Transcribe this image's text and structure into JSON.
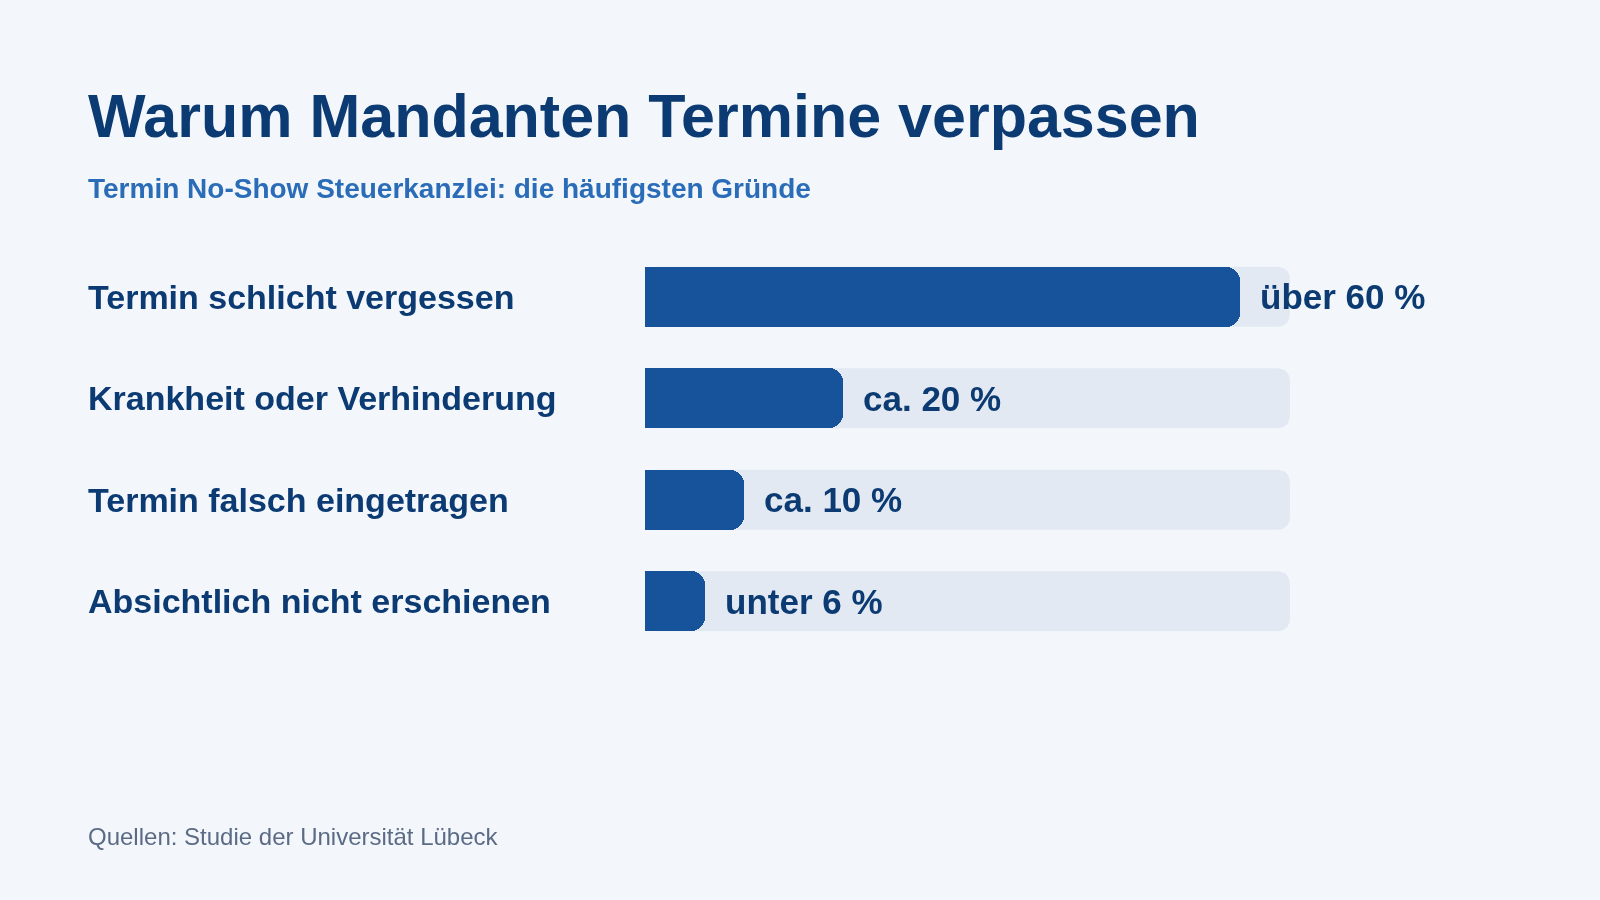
{
  "chart_data": {
    "type": "bar",
    "orientation": "horizontal",
    "title": "Warum Mandanten Termine verpassen",
    "subtitle": "Termin No-Show Steuerkanzlei: die häufigsten Gründe",
    "categories": [
      "Termin schlicht vergessen",
      "Krankheit oder Verhinderung",
      "Termin falsch eingetragen",
      "Absichtlich nicht erschienen"
    ],
    "values": [
      60,
      20,
      10,
      6
    ],
    "color": "#16539a",
    "value_labels": [
      "über 60 %",
      "ca. 20 %",
      "ca. 10 %",
      "unter 6 %"
    ],
    "xlim": [
      0,
      65
    ],
    "tick_labels": "y",
    "annotations": [
      "Quellen: Studie der Universität Lübeck"
    ]
  }
}
